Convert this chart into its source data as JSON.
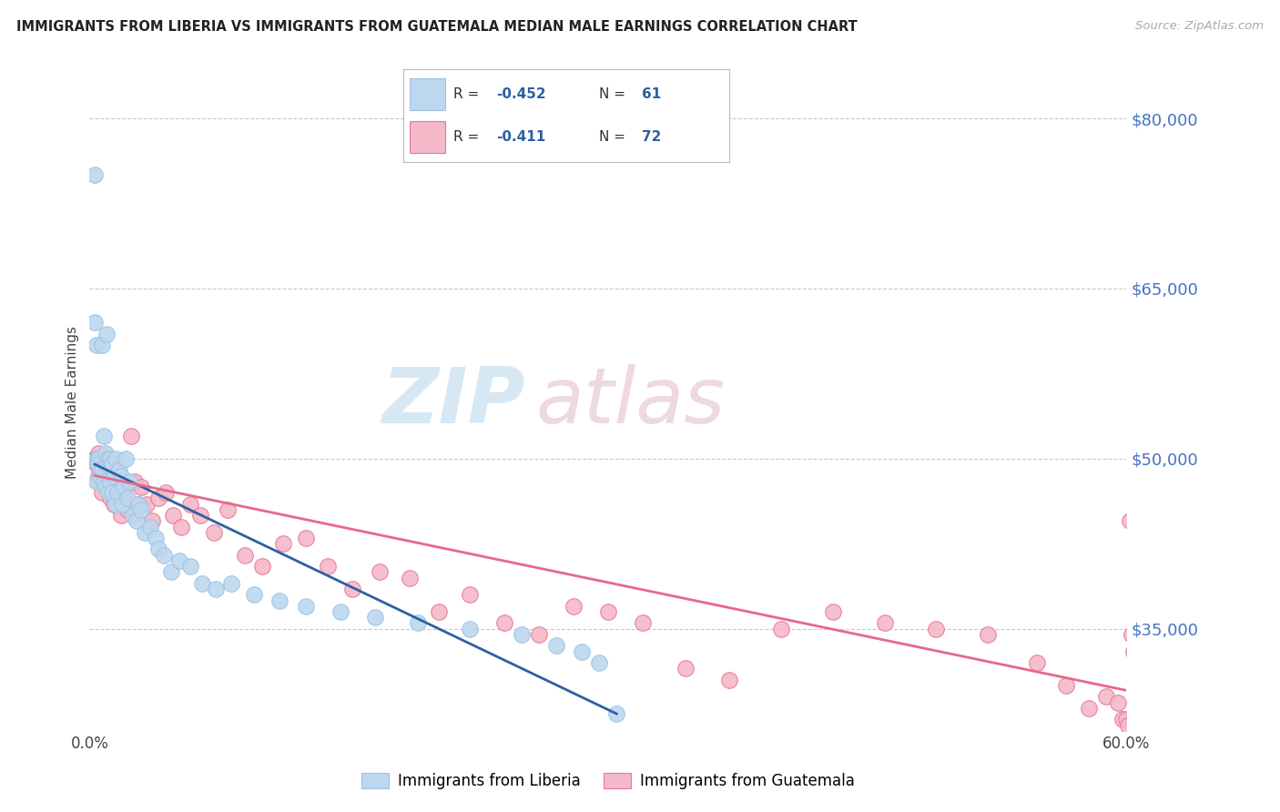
{
  "title": "IMMIGRANTS FROM LIBERIA VS IMMIGRANTS FROM GUATEMALA MEDIAN MALE EARNINGS CORRELATION CHART",
  "source": "Source: ZipAtlas.com",
  "ylabel": "Median Male Earnings",
  "xlim": [
    0.0,
    0.6
  ],
  "ylim": [
    26000,
    84000
  ],
  "yticks": [
    35000,
    50000,
    65000,
    80000
  ],
  "ytick_labels": [
    "$35,000",
    "$50,000",
    "$65,000",
    "$80,000"
  ],
  "xticks": [
    0.0,
    0.1,
    0.2,
    0.3,
    0.4,
    0.5,
    0.6
  ],
  "xtick_labels": [
    "0.0%",
    "",
    "",
    "",
    "",
    "",
    "60.0%"
  ],
  "background_color": "#ffffff",
  "grid_color": "#c8c8c8",
  "liberia_color": "#bdd7ee",
  "liberia_edge_color": "#9dc3e6",
  "guatemala_color": "#f4b8c8",
  "guatemala_edge_color": "#e87898",
  "liberia_line_color": "#2e5fa3",
  "guatemala_line_color": "#e8688a",
  "R_liberia": -0.452,
  "N_liberia": 61,
  "R_guatemala": -0.411,
  "N_guatemala": 72,
  "legend_label_liberia": "Immigrants from Liberia",
  "legend_label_guatemala": "Immigrants from Guatemala",
  "liberia_line_x": [
    0.003,
    0.305
  ],
  "liberia_line_y": [
    49500,
    27500
  ],
  "guatemala_line_x": [
    0.003,
    0.602
  ],
  "guatemala_line_y": [
    48500,
    29500
  ],
  "liberia_x": [
    0.003,
    0.003,
    0.004,
    0.004,
    0.004,
    0.005,
    0.005,
    0.006,
    0.006,
    0.007,
    0.007,
    0.008,
    0.008,
    0.009,
    0.009,
    0.01,
    0.01,
    0.011,
    0.011,
    0.012,
    0.012,
    0.013,
    0.013,
    0.014,
    0.015,
    0.015,
    0.016,
    0.017,
    0.018,
    0.019,
    0.02,
    0.021,
    0.022,
    0.023,
    0.025,
    0.027,
    0.028,
    0.03,
    0.032,
    0.035,
    0.038,
    0.04,
    0.043,
    0.047,
    0.052,
    0.058,
    0.065,
    0.073,
    0.082,
    0.095,
    0.11,
    0.125,
    0.145,
    0.165,
    0.19,
    0.22,
    0.25,
    0.27,
    0.285,
    0.295,
    0.305
  ],
  "liberia_y": [
    75000,
    62000,
    60000,
    50000,
    48000,
    50000,
    49500,
    49000,
    48500,
    60000,
    49000,
    52000,
    48000,
    50500,
    47500,
    61000,
    49500,
    50000,
    47000,
    50000,
    48000,
    49500,
    47000,
    48500,
    46000,
    50000,
    47000,
    49000,
    48500,
    46000,
    47500,
    50000,
    46500,
    48000,
    45000,
    44500,
    46000,
    45500,
    43500,
    44000,
    43000,
    42000,
    41500,
    40000,
    41000,
    40500,
    39000,
    38500,
    39000,
    38000,
    37500,
    37000,
    36500,
    36000,
    35500,
    35000,
    34500,
    33500,
    33000,
    32000,
    27500
  ],
  "guatemala_x": [
    0.003,
    0.004,
    0.005,
    0.005,
    0.006,
    0.006,
    0.007,
    0.007,
    0.008,
    0.009,
    0.009,
    0.01,
    0.011,
    0.012,
    0.012,
    0.013,
    0.014,
    0.015,
    0.016,
    0.017,
    0.018,
    0.019,
    0.02,
    0.022,
    0.024,
    0.026,
    0.028,
    0.03,
    0.033,
    0.036,
    0.04,
    0.044,
    0.048,
    0.053,
    0.058,
    0.064,
    0.072,
    0.08,
    0.09,
    0.1,
    0.112,
    0.125,
    0.138,
    0.152,
    0.168,
    0.185,
    0.202,
    0.22,
    0.24,
    0.26,
    0.28,
    0.3,
    0.32,
    0.345,
    0.37,
    0.4,
    0.43,
    0.46,
    0.49,
    0.52,
    0.548,
    0.565,
    0.578,
    0.588,
    0.595,
    0.598,
    0.6,
    0.601,
    0.602,
    0.603,
    0.604,
    0.605
  ],
  "guatemala_y": [
    50000,
    49500,
    50500,
    48500,
    49000,
    48000,
    50000,
    47000,
    49000,
    50000,
    48000,
    49000,
    47500,
    48000,
    46500,
    48500,
    46000,
    47000,
    48000,
    46500,
    45000,
    46500,
    47000,
    45500,
    52000,
    48000,
    46000,
    47500,
    46000,
    44500,
    46500,
    47000,
    45000,
    44000,
    46000,
    45000,
    43500,
    45500,
    41500,
    40500,
    42500,
    43000,
    40500,
    38500,
    40000,
    39500,
    36500,
    38000,
    35500,
    34500,
    37000,
    36500,
    35500,
    31500,
    30500,
    35000,
    36500,
    35500,
    35000,
    34500,
    32000,
    30000,
    28000,
    29000,
    28500,
    27000,
    27000,
    26500,
    44500,
    34500,
    33000,
    30500
  ]
}
